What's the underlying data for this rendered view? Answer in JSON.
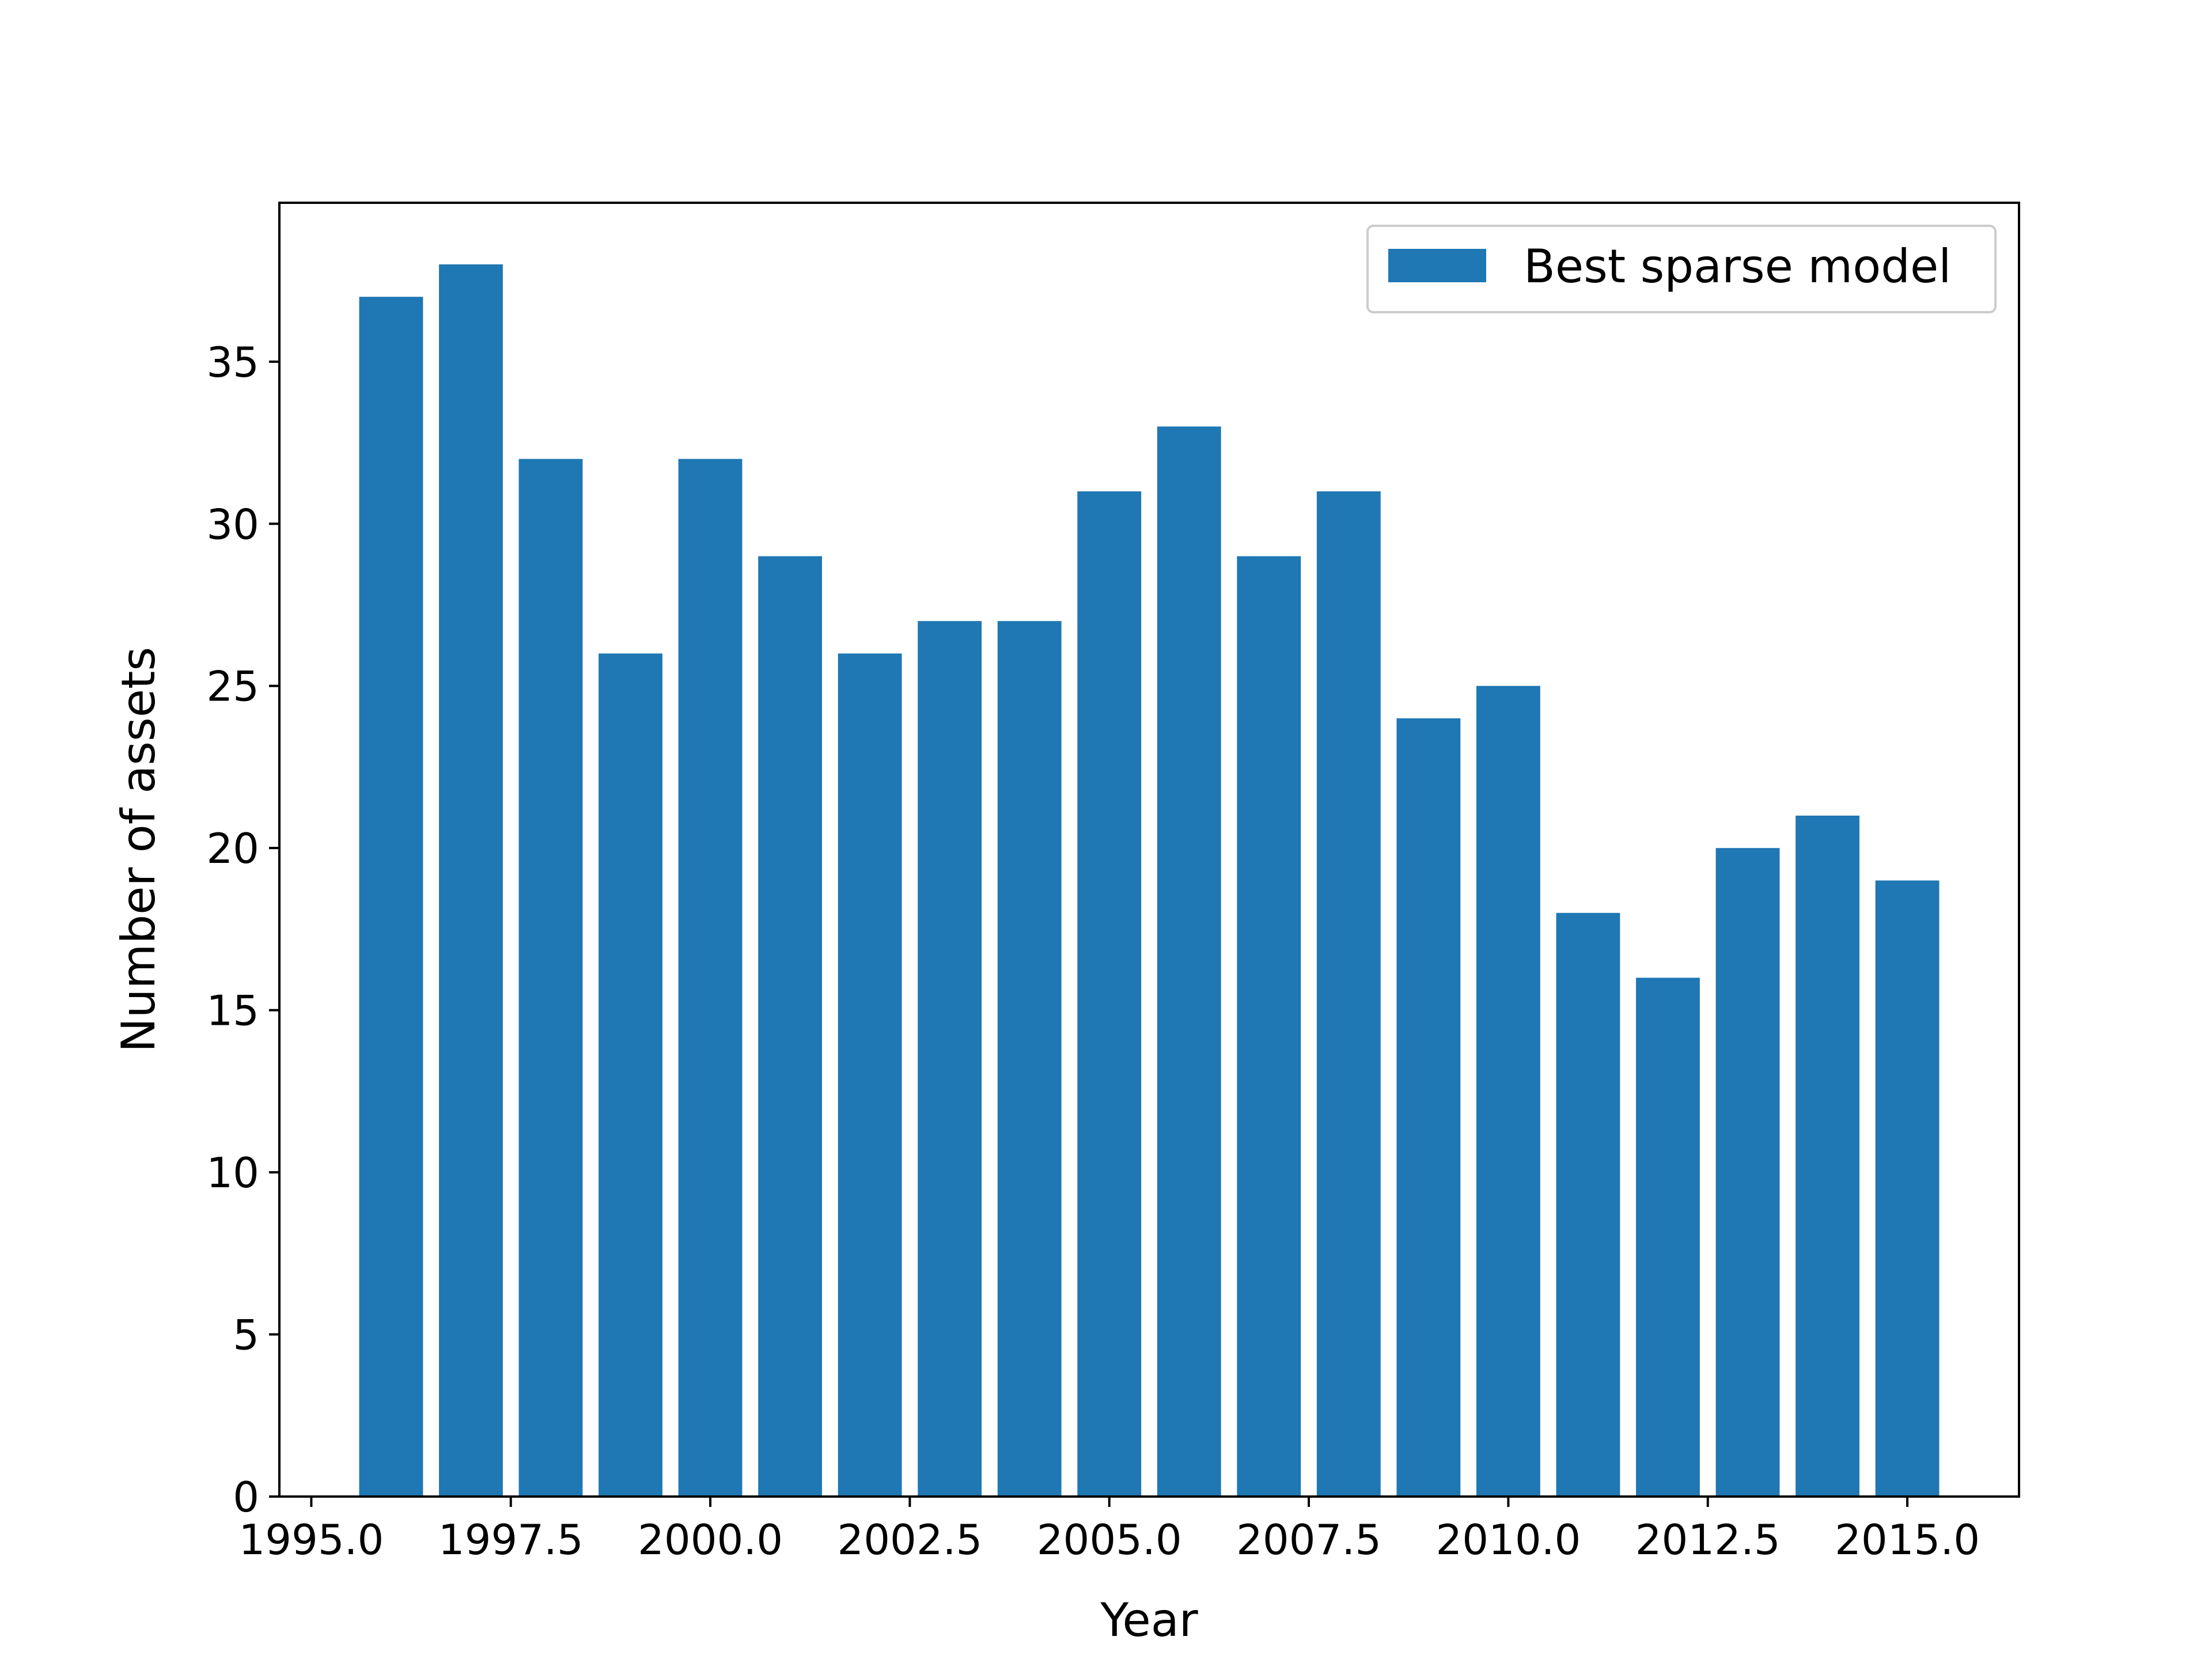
{
  "chart_data": {
    "type": "bar",
    "x": [
      1996,
      1997,
      1998,
      1999,
      2000,
      2001,
      2002,
      2003,
      2004,
      2005,
      2006,
      2007,
      2008,
      2009,
      2010,
      2011,
      2012,
      2013,
      2014,
      2015
    ],
    "series": [
      {
        "name": "Best sparse model",
        "values": [
          37,
          38,
          32,
          26,
          32,
          29,
          26,
          27,
          27,
          31,
          33,
          29,
          31,
          24,
          25,
          18,
          16,
          20,
          21,
          19
        ],
        "color": "#1f77b4"
      }
    ],
    "xlabel": "Year",
    "ylabel": "Number of assets",
    "xlim": [
      1994.6,
      2016.4
    ],
    "ylim": [
      0,
      39.9
    ],
    "xticks": [
      1995.0,
      1997.5,
      2000.0,
      2002.5,
      2005.0,
      2007.5,
      2010.0,
      2012.5,
      2015.0
    ],
    "xtick_labels": [
      "1995.0",
      "1997.5",
      "2000.0",
      "2002.5",
      "2005.0",
      "2007.5",
      "2010.0",
      "2012.5",
      "2015.0"
    ],
    "yticks": [
      0,
      5,
      10,
      15,
      20,
      25,
      30,
      35
    ],
    "ytick_labels": [
      "0",
      "5",
      "10",
      "15",
      "20",
      "25",
      "30",
      "35"
    ],
    "bar_width": 0.8,
    "grid": false,
    "legend_position": "top-right"
  }
}
